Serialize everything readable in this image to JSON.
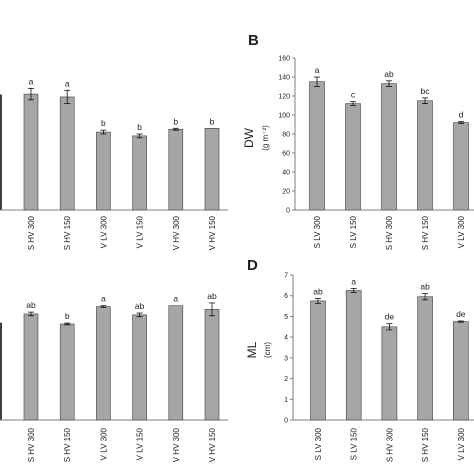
{
  "colors": {
    "bar": "#a6a6a6",
    "bar_stroke": "#404040",
    "axis": "#7f7f7f",
    "text": "#222222"
  },
  "chart_data": [
    {
      "id": "A",
      "panel_letter": "",
      "type": "bar",
      "ylabel": "",
      "yunit": "",
      "ylim": [
        0,
        160
      ],
      "yticks": [],
      "categories": [
        "S HV 300",
        "S HV 150",
        "V LV 300",
        "V LV 150",
        "V HV 300",
        "V HV 150"
      ],
      "values": [
        122,
        119,
        82,
        78,
        85,
        86
      ],
      "errors": [
        6,
        7,
        2,
        2,
        1,
        0
      ],
      "letters": [
        "a",
        "a",
        "b",
        "b",
        "b",
        "b"
      ],
      "grid": false
    },
    {
      "id": "B",
      "panel_letter": "B",
      "type": "bar",
      "ylabel": "DW",
      "yunit": "(g m⁻²)",
      "ylim": [
        0,
        160
      ],
      "yticks": [
        "0",
        "20",
        "40",
        "60",
        "80",
        "100",
        "120",
        "140",
        "160"
      ],
      "categories": [
        "S LV 300",
        "S LV 150",
        "S HV 300",
        "S HV 150",
        "V LV 300"
      ],
      "values": [
        135,
        112,
        133,
        115,
        92
      ],
      "errors": [
        5,
        2,
        3,
        3,
        1
      ],
      "letters": [
        "a",
        "c",
        "ab",
        "bc",
        "d"
      ],
      "grid": false
    },
    {
      "id": "C",
      "panel_letter": "",
      "type": "bar",
      "ylabel": "",
      "yunit": "",
      "ylim": [
        0,
        7
      ],
      "yticks": [],
      "categories": [
        "S HV 300",
        "S HV 150",
        "V LV 300",
        "V LV 150",
        "V HV 300",
        "V HV 150"
      ],
      "values": [
        5.8,
        5.25,
        6.2,
        5.75,
        6.25,
        6.05
      ],
      "errors": [
        0.1,
        0.05,
        0.05,
        0.1,
        0,
        0.35
      ],
      "letters": [
        "ab",
        "b",
        "a",
        "ab",
        "a",
        "ab"
      ],
      "grid": false
    },
    {
      "id": "D",
      "panel_letter": "D",
      "type": "bar",
      "ylabel": "ML",
      "yunit": "(cm)",
      "ylim": [
        0,
        7
      ],
      "yticks": [
        "0",
        "1",
        "2",
        "3",
        "4",
        "5",
        "6",
        "7"
      ],
      "categories": [
        "S LV 300",
        "S LV 150",
        "S HV 300",
        "S HV 150",
        "V LV 300"
      ],
      "values": [
        5.75,
        6.25,
        4.5,
        5.95,
        4.75
      ],
      "errors": [
        0.12,
        0.1,
        0.15,
        0.15,
        0.03
      ],
      "letters": [
        "ab",
        "a",
        "de",
        "ab",
        "de"
      ],
      "grid": false
    }
  ]
}
